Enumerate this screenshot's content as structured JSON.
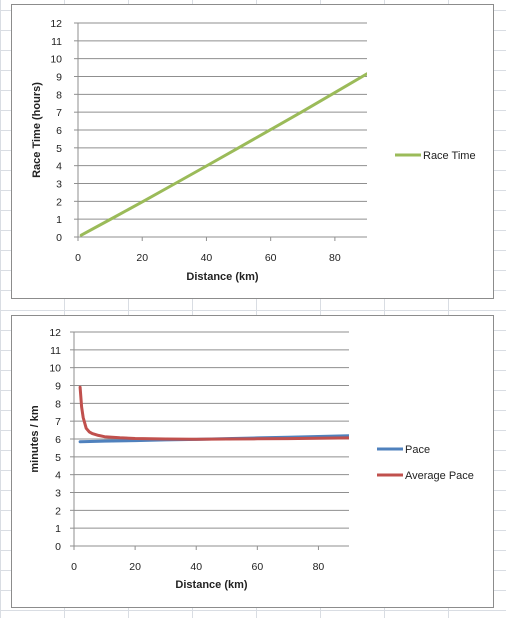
{
  "chart_data": [
    {
      "type": "line",
      "xlabel": "Distance (km)",
      "ylabel": "Race Time (hours)",
      "xlim": [
        0,
        90
      ],
      "ylim": [
        0,
        12
      ],
      "x_ticks": [
        "0",
        "20",
        "40",
        "60",
        "80"
      ],
      "y_ticks": [
        "0",
        "1",
        "2",
        "3",
        "4",
        "5",
        "6",
        "7",
        "8",
        "9",
        "10",
        "11",
        "12"
      ],
      "grid": true,
      "legend_position": "right",
      "series": [
        {
          "name": "Race Time",
          "color": "#9bbb59",
          "x": [
            1,
            10,
            20,
            30,
            40,
            50,
            60,
            70,
            80,
            90
          ],
          "y": [
            0.1,
            0.98,
            1.97,
            2.97,
            3.98,
            5.0,
            6.02,
            7.05,
            8.1,
            9.15
          ]
        }
      ]
    },
    {
      "type": "line",
      "xlabel": "Distance (km)",
      "ylabel": "minutes / km",
      "xlim": [
        0,
        90
      ],
      "ylim": [
        0,
        12
      ],
      "x_ticks": [
        "0",
        "20",
        "40",
        "60",
        "80"
      ],
      "y_ticks": [
        "0",
        "1",
        "2",
        "3",
        "4",
        "5",
        "6",
        "7",
        "8",
        "9",
        "10",
        "11",
        "12"
      ],
      "grid": true,
      "legend_position": "right",
      "series": [
        {
          "name": "Pace",
          "color": "#4f81bd",
          "x": [
            2,
            10,
            20,
            30,
            40,
            50,
            60,
            70,
            80,
            90
          ],
          "y": [
            5.85,
            5.88,
            5.91,
            5.95,
            5.98,
            6.02,
            6.06,
            6.1,
            6.14,
            6.18
          ]
        },
        {
          "name": "Average Pace",
          "color": "#c0504d",
          "x": [
            2,
            2.5,
            3,
            4,
            5,
            6,
            8,
            10,
            15,
            20,
            30,
            40,
            50,
            60,
            70,
            80,
            90
          ],
          "y": [
            8.9,
            7.8,
            7.2,
            6.6,
            6.4,
            6.3,
            6.2,
            6.13,
            6.07,
            6.03,
            6.0,
            5.99,
            6.0,
            6.01,
            6.02,
            6.04,
            6.06
          ]
        }
      ]
    }
  ]
}
